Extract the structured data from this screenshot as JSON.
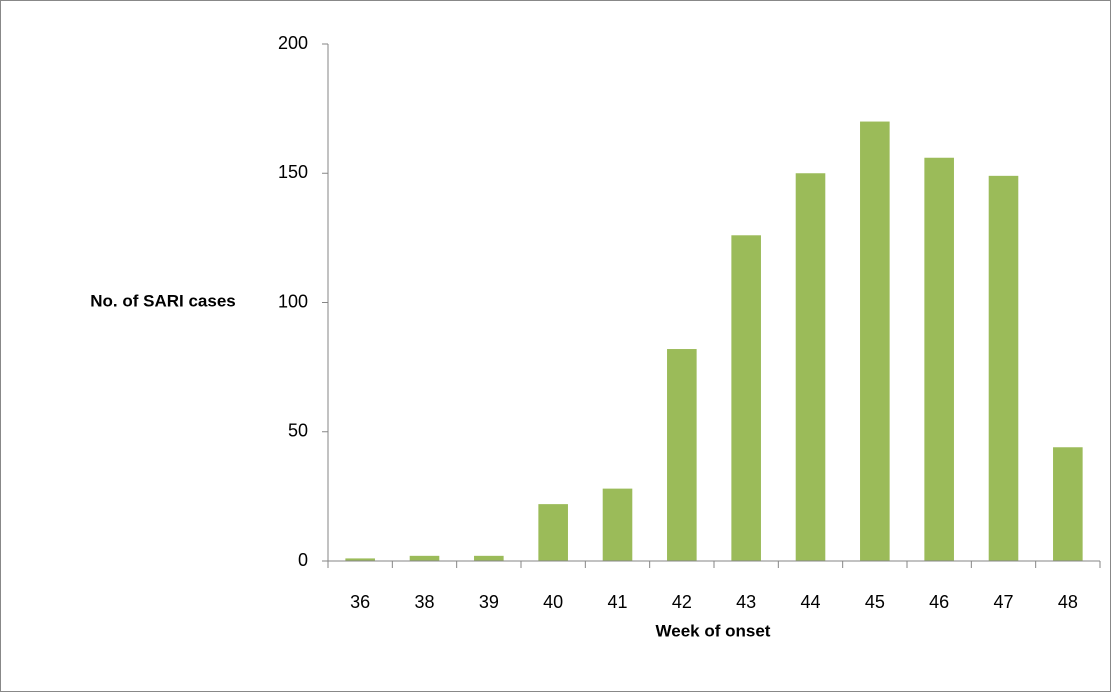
{
  "chart_data": {
    "type": "bar",
    "x_label": "Week of onset",
    "y_label": "No. of SARI cases",
    "categories": [
      "36",
      "38",
      "39",
      "40",
      "41",
      "42",
      "43",
      "44",
      "45",
      "46",
      "47",
      "48"
    ],
    "values": [
      1,
      2,
      2,
      22,
      28,
      82,
      126,
      150,
      170,
      156,
      149,
      44
    ],
    "color": "#9bbb59",
    "ylim": [
      0,
      200
    ],
    "yticks": [
      0,
      50,
      100,
      150,
      200
    ],
    "grid": false
  }
}
